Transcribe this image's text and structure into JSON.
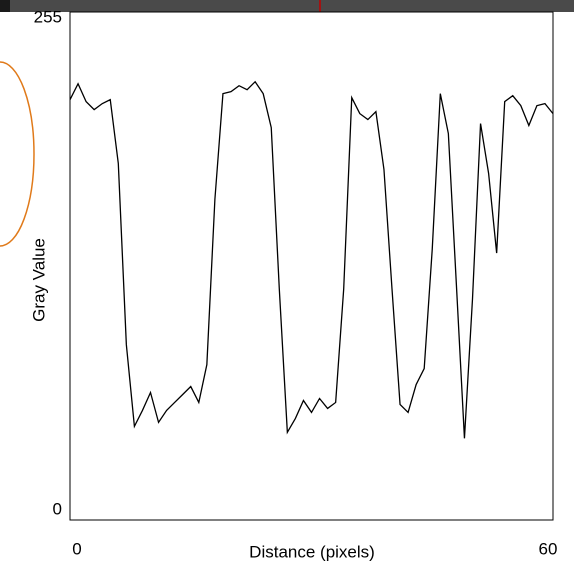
{
  "chart_data": {
    "type": "line",
    "x_label": "Distance (pixels)",
    "y_label": "Gray Value",
    "x": [
      0,
      1,
      2,
      3,
      4,
      5,
      6,
      7,
      8,
      9,
      10,
      11,
      12,
      13,
      14,
      15,
      16,
      17,
      18,
      19,
      20,
      21,
      22,
      23,
      24,
      25,
      26,
      27,
      28,
      29,
      30,
      31,
      32,
      33,
      34,
      35,
      36,
      37,
      38,
      39,
      40,
      41,
      42,
      43,
      44,
      45,
      46,
      47,
      48,
      49,
      50,
      51,
      52,
      53,
      54,
      55,
      56,
      57,
      58,
      59,
      60
    ],
    "series": [
      {
        "color": "#000000",
        "values": [
          211,
          219,
          210,
          206,
          209,
          211,
          179,
          88,
          47,
          55,
          64,
          49,
          55,
          59,
          63,
          67,
          59,
          78,
          161,
          214,
          215,
          218,
          216,
          220,
          214,
          197,
          116,
          44,
          51,
          60,
          54,
          61,
          56,
          59,
          116,
          212,
          204,
          201,
          205,
          176,
          116,
          58,
          54,
          68,
          76,
          136,
          214,
          194,
          118,
          41,
          111,
          199,
          174,
          134,
          210,
          213,
          208,
          198,
          208,
          209,
          204
        ]
      }
    ],
    "xlim": [
      0,
      60
    ],
    "xticks": [
      0,
      60
    ],
    "ylim": [
      0,
      255
    ],
    "yticks": [
      0,
      255
    ]
  }
}
